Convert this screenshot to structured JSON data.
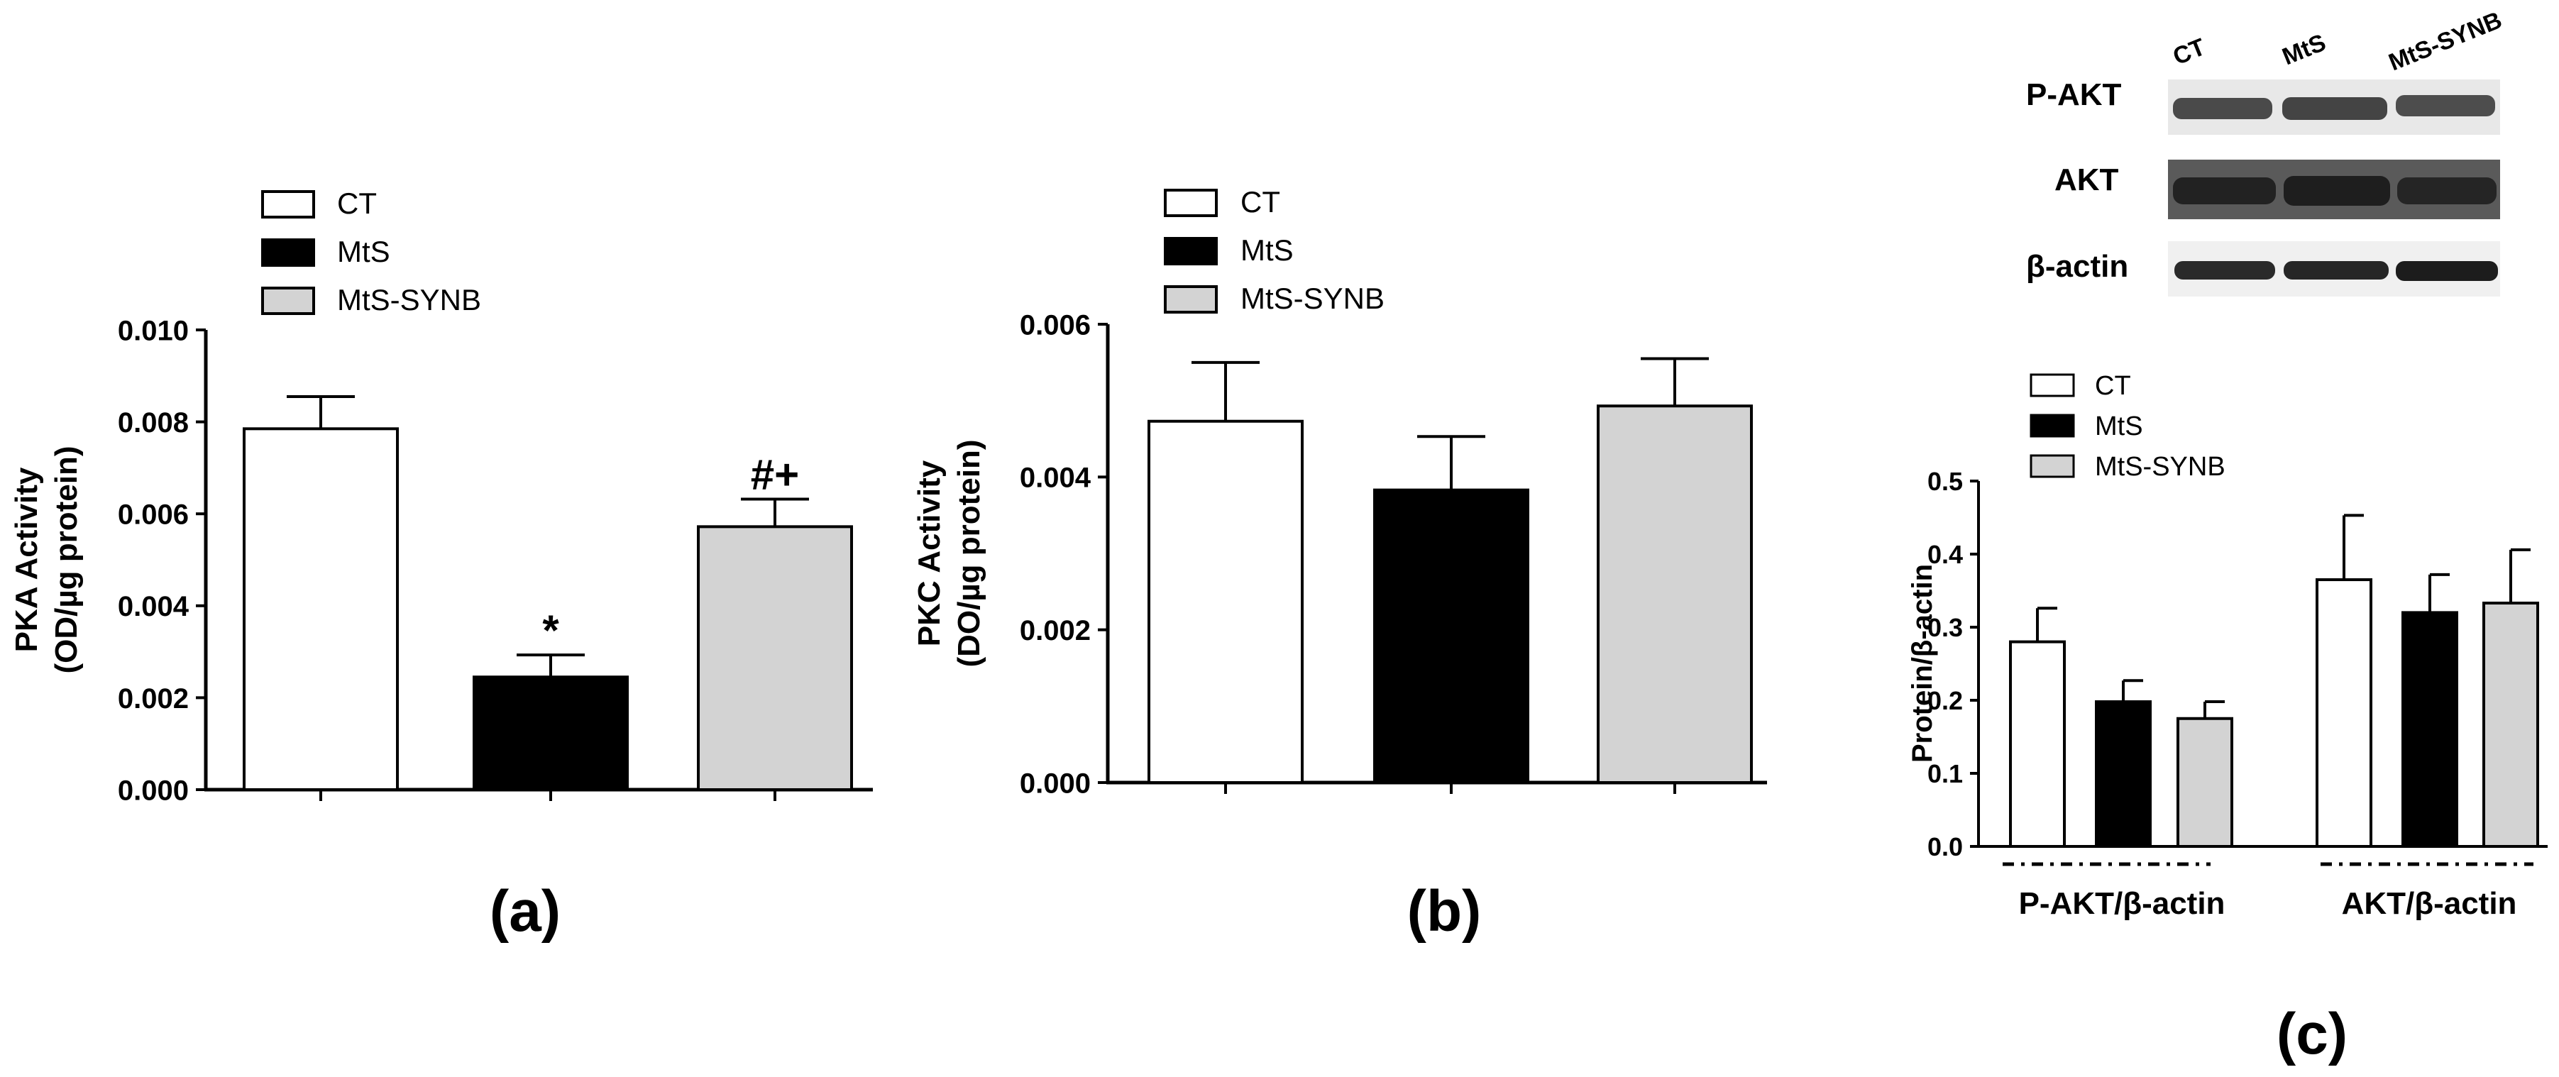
{
  "colors": {
    "CT": "#ffffff",
    "MtS": "#000000",
    "MtS-SYNB": "#d3d3d3",
    "axis": "#000000",
    "blot_bg": "#f2f2f2"
  },
  "chart_data": [
    {
      "id": "a",
      "panel_label": "(a)",
      "type": "bar",
      "title": "",
      "xlabel": "",
      "ylabel_line1": "PKA Activity",
      "ylabel_line2": "(OD/µg protein)",
      "ylim": [
        0,
        0.01
      ],
      "yticks": [
        "0.000",
        "0.002",
        "0.004",
        "0.006",
        "0.008",
        "0.010"
      ],
      "legend": [
        "CT",
        "MtS",
        "MtS-SYNB"
      ],
      "categories": [
        "CT",
        "MtS",
        "MtS-SYNB"
      ],
      "values": [
        0.00785,
        0.00245,
        0.00572
      ],
      "errors": [
        0.0007,
        0.00048,
        0.0006
      ],
      "annotations": [
        "",
        "*",
        "#+"
      ]
    },
    {
      "id": "b",
      "panel_label": "(b)",
      "type": "bar",
      "title": "",
      "xlabel": "",
      "ylabel_line1": "PKC Activity",
      "ylabel_line2": "(DO/µg protein)",
      "ylim": [
        0,
        0.006
      ],
      "yticks": [
        "0.000",
        "0.002",
        "0.004",
        "0.006"
      ],
      "legend": [
        "CT",
        "MtS",
        "MtS-SYNB"
      ],
      "categories": [
        "CT",
        "MtS",
        "MtS-SYNB"
      ],
      "values": [
        0.00473,
        0.00383,
        0.00493
      ],
      "errors": [
        0.00077,
        0.0007,
        0.00062
      ],
      "annotations": [
        "",
        "",
        ""
      ]
    },
    {
      "id": "c",
      "panel_label": "(c)",
      "type": "bar",
      "title": "",
      "xlabel": "",
      "ylabel": "Protein/β-actin",
      "ylim": [
        0,
        0.5
      ],
      "yticks": [
        "0.0",
        "0.1",
        "0.2",
        "0.3",
        "0.4",
        "0.5"
      ],
      "legend": [
        "CT",
        "MtS",
        "MtS-SYNB"
      ],
      "categories": [
        "P-AKT/β-actin",
        "AKT/β-actin"
      ],
      "series": [
        {
          "name": "CT",
          "values": [
            0.28,
            0.365
          ],
          "errors": [
            0.046,
            0.088
          ]
        },
        {
          "name": "MtS",
          "values": [
            0.198,
            0.32
          ],
          "errors": [
            0.029,
            0.052
          ]
        },
        {
          "name": "MtS-SYNB",
          "values": [
            0.175,
            0.333
          ],
          "errors": [
            0.023,
            0.073
          ]
        }
      ]
    }
  ],
  "western_blot": {
    "lanes": [
      "CT",
      "MtS",
      "MtS-SYNB"
    ],
    "rows": [
      "P-AKT",
      "AKT",
      "β-actin"
    ]
  }
}
